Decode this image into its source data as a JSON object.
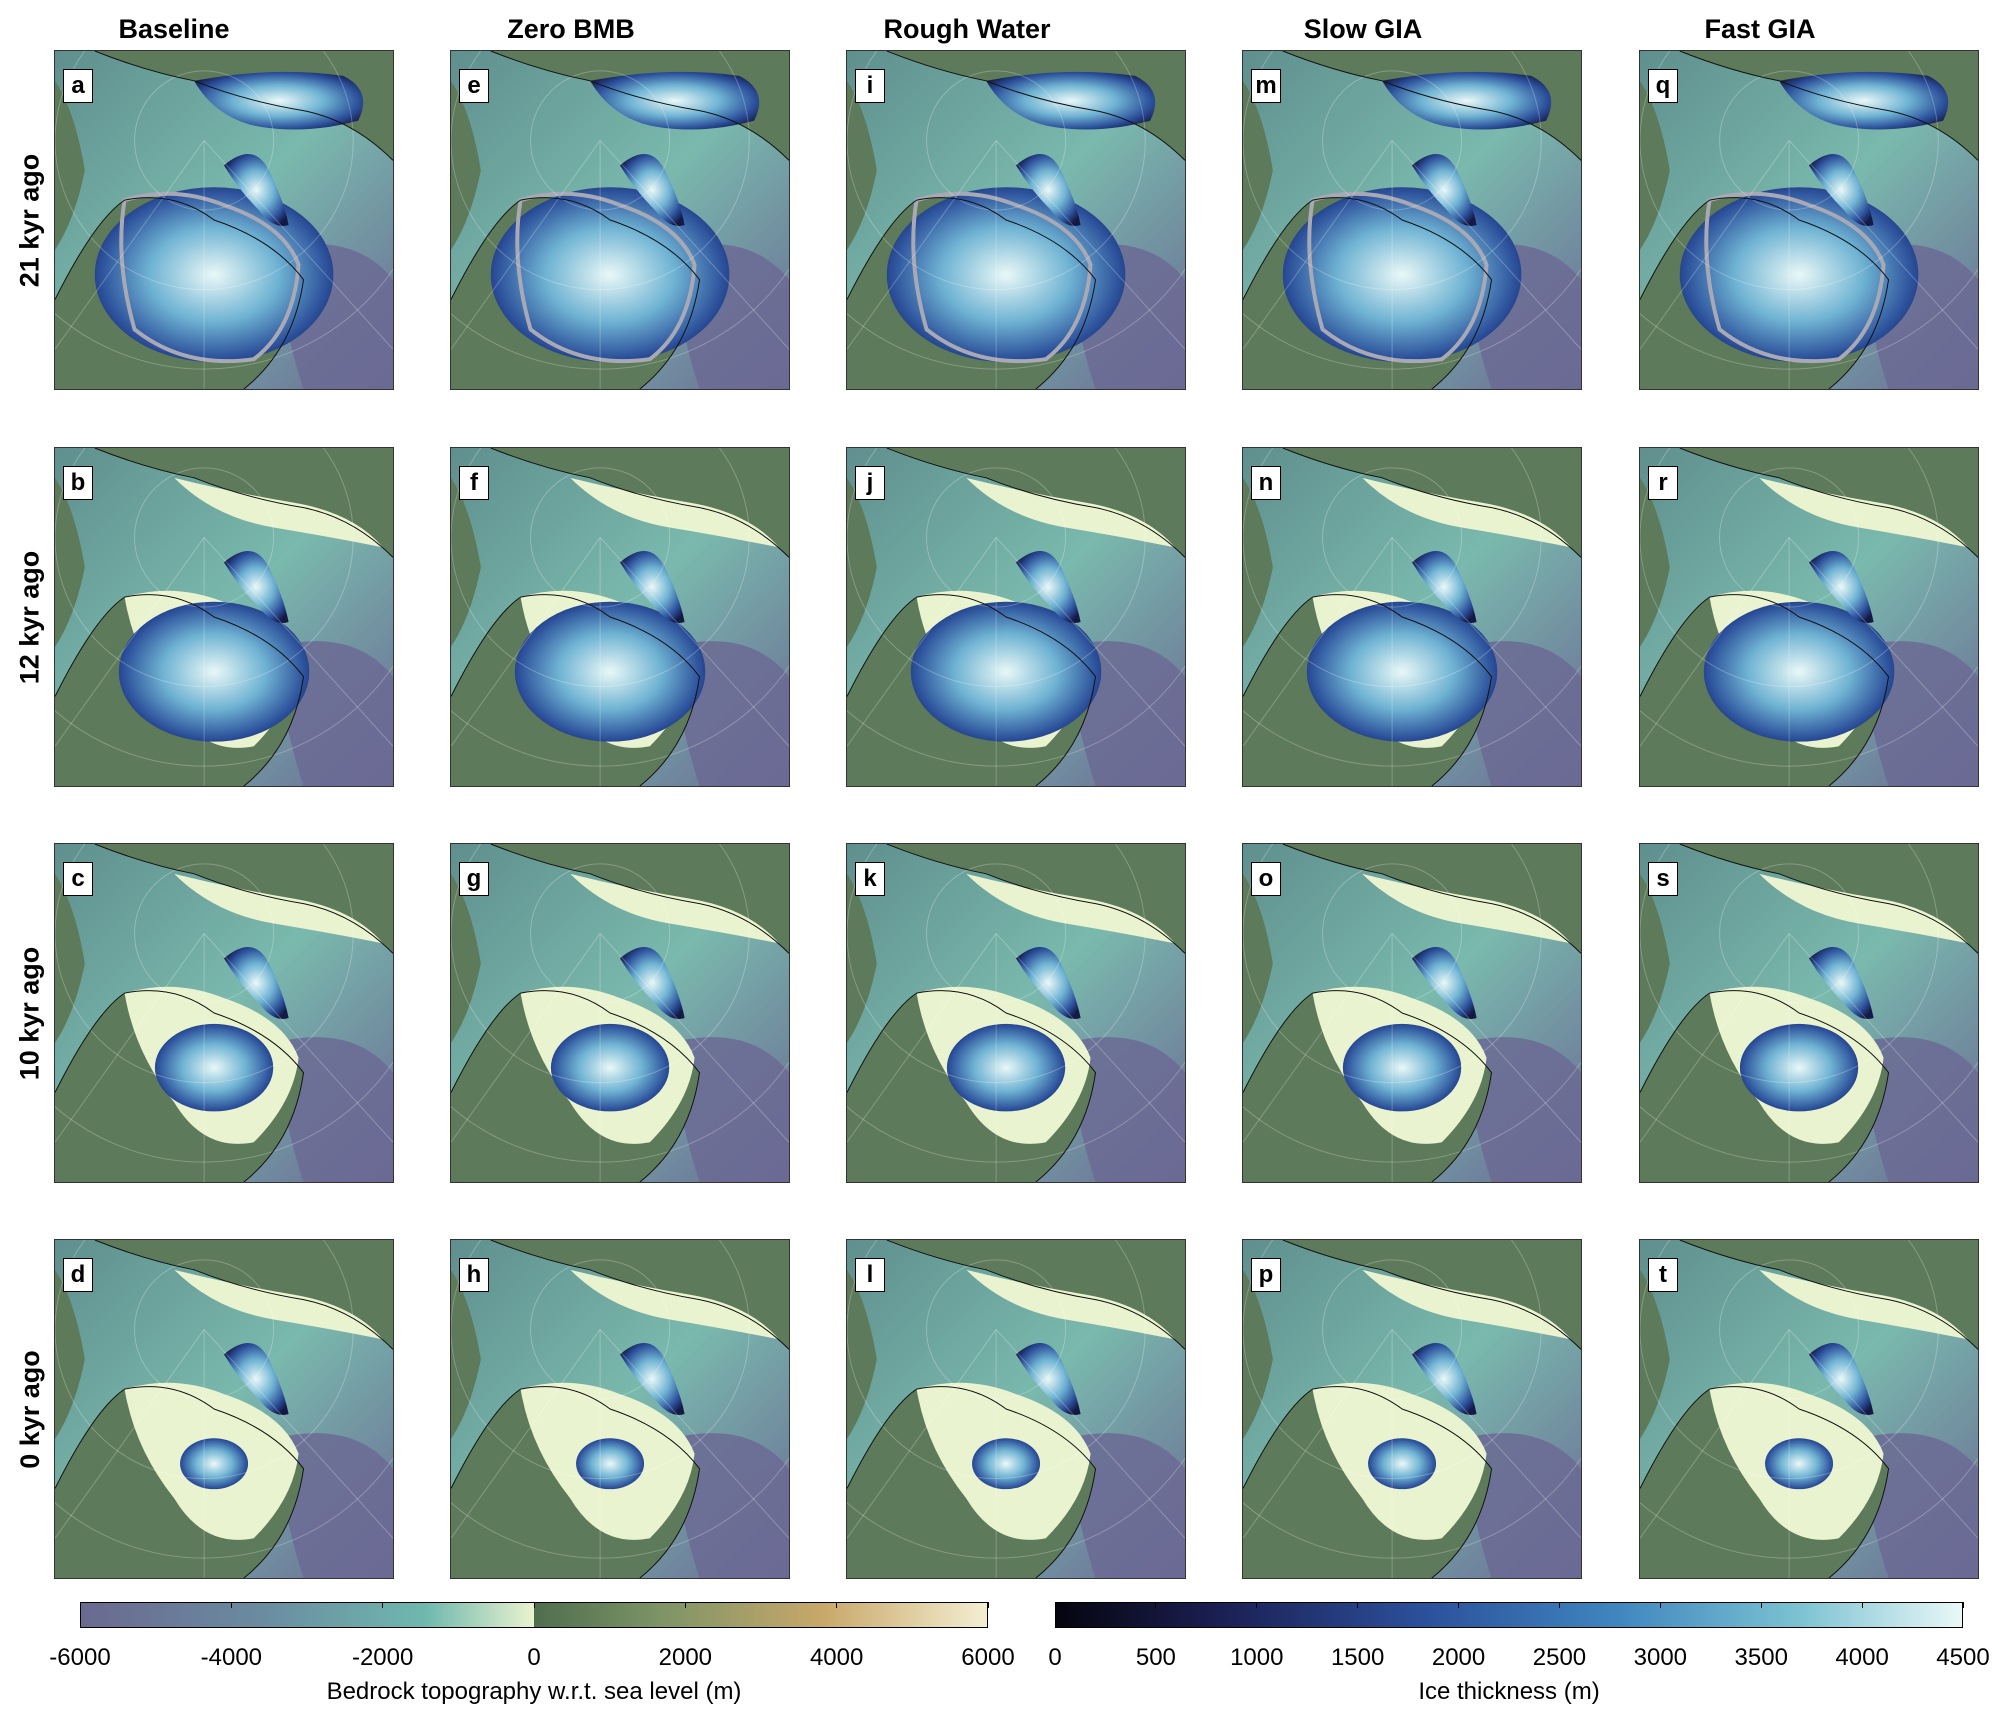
{
  "columns": [
    "Baseline",
    "Zero BMB",
    "Rough Water",
    "Slow GIA",
    "Fast GIA"
  ],
  "rows": [
    "21 kyr ago",
    "12 kyr ago",
    "10 kyr ago",
    "0 kyr ago"
  ],
  "panel_labels": [
    [
      "a",
      "e",
      "i",
      "m",
      "q"
    ],
    [
      "b",
      "f",
      "j",
      "n",
      "r"
    ],
    [
      "c",
      "g",
      "k",
      "o",
      "s"
    ],
    [
      "d",
      "h",
      "l",
      "p",
      "t"
    ]
  ],
  "colors": {
    "ocean_deep": "#6b6a94",
    "ocean_shallow": "#6fb8ae",
    "shelf": "#eaf3cf",
    "land": "#5d7a5a",
    "ice_thin": "#12183a",
    "ice_mid": "#3b6fb0",
    "ice_thick": "#e7f7f7"
  },
  "colorbars": [
    {
      "label": "Bedrock topography w.r.t. sea level (m)",
      "ticks": [
        "-6000",
        "-4000",
        "-2000",
        "0",
        "2000",
        "4000",
        "6000"
      ],
      "range": [
        -6000,
        6000
      ]
    },
    {
      "label": "Ice thickness (m)",
      "ticks": [
        "0",
        "500",
        "1000",
        "1500",
        "2000",
        "2500",
        "3000",
        "3500",
        "4000",
        "4500"
      ],
      "range": [
        0,
        4500
      ]
    }
  ]
}
